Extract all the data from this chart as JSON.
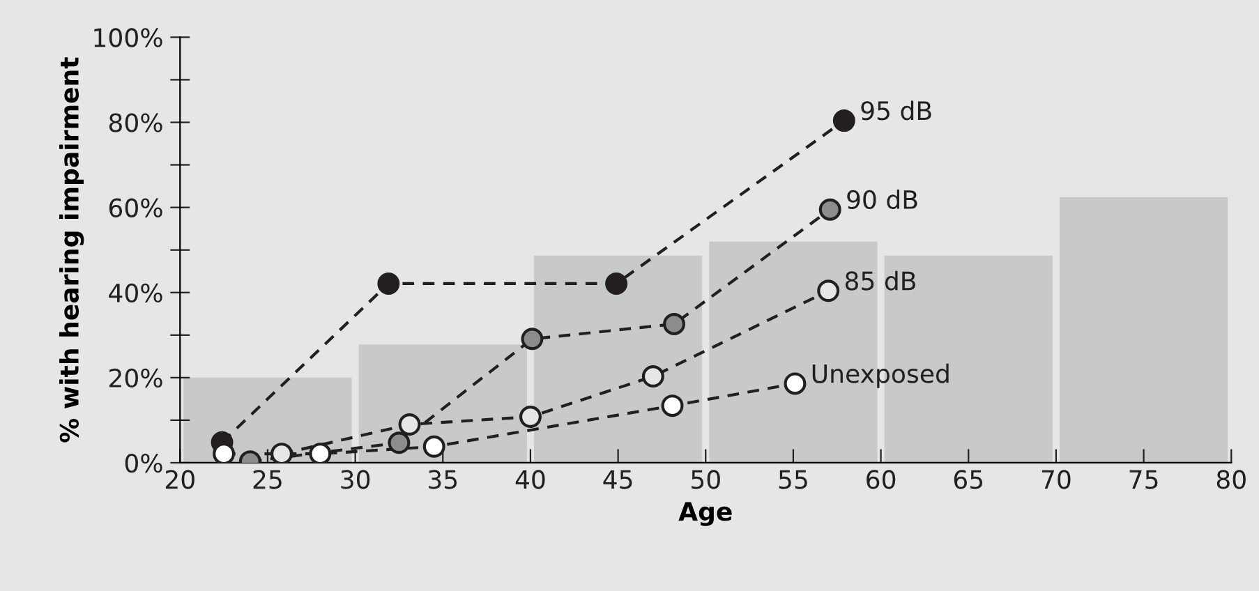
{
  "chart_data": {
    "type": "histogram",
    "xlabel": "Age",
    "ylabel": "% with hearing impairment",
    "bins": [
      20,
      30,
      40,
      50,
      60,
      70,
      80
    ],
    "values": [
      20,
      27.8,
      48.7,
      52,
      48.7,
      62.4
    ],
    "color": "#c8c9cb",
    "series": [
      {
        "type": "line",
        "name": "95 dB",
        "color": "#231f20",
        "x": [
          22.4,
          31.9,
          44.9,
          57.9
        ],
        "values": [
          4.8,
          42.1,
          42.1,
          80.4
        ]
      },
      {
        "type": "line",
        "name": "90 dB",
        "color": "#8c8c8c",
        "x": [
          24.0,
          32.5,
          40.1,
          48.2,
          57.1
        ],
        "values": [
          0.3,
          4.7,
          29.1,
          32.6,
          59.5
        ]
      },
      {
        "type": "line",
        "name": "85 dB",
        "color": "#e6e6e6",
        "x": [
          25.8,
          33.1,
          40.0,
          47.0,
          57.0
        ],
        "values": [
          2.1,
          9.0,
          10.8,
          20.3,
          40.4
        ]
      },
      {
        "type": "line",
        "name": "Unexposed",
        "color": "#ffffff",
        "x": [
          22.5,
          28.0,
          34.5,
          48.1,
          55.1
        ],
        "values": [
          2.1,
          2.1,
          3.8,
          13.4,
          18.6
        ]
      }
    ],
    "marker": "circle",
    "line_style": "dashed",
    "grid": false,
    "legend": false,
    "xlim": [
      20,
      80
    ],
    "xticks": [
      20,
      25,
      30,
      35,
      40,
      45,
      50,
      55,
      60,
      65,
      70,
      75,
      80
    ],
    "ylim": [
      0,
      100
    ],
    "yticks": [
      {
        "value": 0,
        "label": "0%"
      },
      {
        "value": 10,
        "label": null
      },
      {
        "value": 20,
        "label": "20%"
      },
      {
        "value": 30,
        "label": null
      },
      {
        "value": 40,
        "label": "40%"
      },
      {
        "value": 50,
        "label": null
      },
      {
        "value": 60,
        "label": "60%"
      },
      {
        "value": 70,
        "label": null
      },
      {
        "value": 80,
        "label": "80%"
      },
      {
        "value": 90,
        "label": null
      },
      {
        "value": 100,
        "label": "100%"
      }
    ]
  }
}
